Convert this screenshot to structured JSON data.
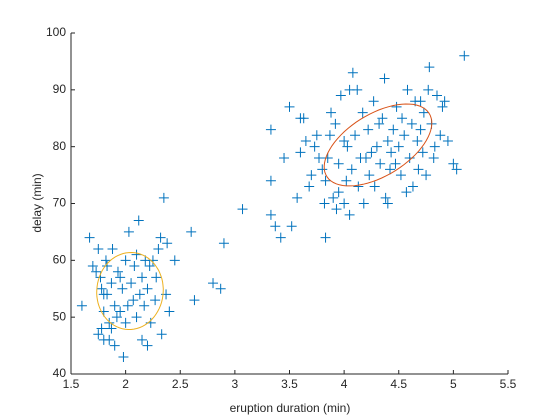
{
  "chart_data": {
    "type": "scatter",
    "xlabel": "eruption duration (min)",
    "ylabel": "delay (min)",
    "xlim": [
      1.5,
      5.5
    ],
    "xticks": [
      1.5,
      2,
      2.5,
      3,
      3.5,
      4,
      4.5,
      5,
      5.5
    ],
    "ylim": [
      40,
      100
    ],
    "yticks": [
      40,
      50,
      60,
      70,
      80,
      90,
      100
    ],
    "color": "#0072bd",
    "x": [
      1.6,
      1.67,
      1.7,
      1.73,
      1.75,
      1.75,
      1.77,
      1.78,
      1.78,
      1.8,
      1.8,
      1.8,
      1.82,
      1.83,
      1.83,
      1.85,
      1.85,
      1.87,
      1.87,
      1.88,
      1.9,
      1.9,
      1.92,
      1.93,
      1.95,
      1.95,
      1.97,
      1.98,
      2.0,
      2.0,
      2.02,
      2.03,
      2.05,
      2.07,
      2.08,
      2.1,
      2.1,
      2.12,
      2.13,
      2.15,
      2.15,
      2.17,
      2.18,
      2.2,
      2.2,
      2.22,
      2.23,
      2.25,
      2.27,
      2.28,
      2.3,
      2.32,
      2.33,
      2.35,
      2.37,
      2.38,
      2.4,
      2.45,
      2.6,
      2.63,
      2.8,
      2.87,
      2.9,
      3.07,
      3.33,
      3.33,
      3.33,
      3.37,
      3.42,
      3.45,
      3.5,
      3.52,
      3.57,
      3.6,
      3.6,
      3.63,
      3.65,
      3.68,
      3.7,
      3.73,
      3.75,
      3.77,
      3.8,
      3.82,
      3.83,
      3.83,
      3.85,
      3.87,
      3.88,
      3.9,
      3.92,
      3.93,
      3.95,
      3.97,
      4.0,
      4.0,
      4.02,
      4.03,
      4.05,
      4.07,
      4.08,
      4.1,
      4.12,
      4.13,
      4.15,
      4.17,
      4.18,
      4.2,
      4.22,
      4.23,
      4.25,
      4.27,
      4.28,
      4.3,
      4.32,
      4.33,
      4.35,
      4.37,
      4.38,
      4.4,
      4.42,
      4.43,
      4.45,
      4.47,
      4.48,
      4.5,
      4.52,
      4.53,
      4.55,
      4.58,
      4.6,
      4.62,
      4.63,
      4.65,
      4.67,
      4.68,
      4.7,
      4.7,
      4.72,
      4.73,
      4.75,
      4.77,
      4.78,
      4.8,
      4.82,
      4.83,
      4.85,
      4.88,
      4.9,
      4.92,
      4.95,
      5.0,
      5.03,
      5.1,
      4.4,
      4.57,
      4.05,
      3.95
    ],
    "values": [
      52,
      64,
      59,
      58,
      47,
      62,
      57,
      55,
      48,
      51,
      54,
      46,
      60,
      54,
      59,
      49,
      46,
      48,
      56,
      62,
      45,
      52,
      50,
      58,
      51,
      57,
      55,
      43,
      49,
      60,
      52,
      65,
      56,
      53,
      59,
      50,
      61,
      67,
      54,
      46,
      57,
      52,
      60,
      45,
      55,
      59,
      49,
      60,
      53,
      57,
      62,
      64,
      47,
      71,
      54,
      63,
      51,
      60,
      65,
      53,
      56,
      55,
      63,
      69,
      83,
      74,
      68,
      66,
      64,
      78,
      87,
      66,
      71,
      79,
      85,
      85,
      81,
      73,
      75,
      80,
      82,
      78,
      76,
      70,
      74,
      64,
      78,
      82,
      86,
      71,
      84,
      69,
      77,
      89,
      70,
      81,
      74,
      80,
      68,
      76,
      93,
      82,
      90,
      73,
      78,
      86,
      70,
      78,
      83,
      75,
      79,
      88,
      73,
      80,
      84,
      77,
      85,
      92,
      71,
      81,
      76,
      79,
      83,
      77,
      87,
      80,
      75,
      85,
      82,
      90,
      78,
      84,
      73,
      88,
      81,
      76,
      83,
      88,
      79,
      86,
      75,
      90,
      94,
      84,
      78,
      80,
      89,
      82,
      87,
      88,
      81,
      77,
      76,
      96,
      70,
      72,
      90,
      72
    ],
    "ellipses": [
      {
        "color": "#d95319",
        "center": [
          4.31,
          80.3
        ],
        "axis1": [
          0.45,
          6
        ],
        "axis2": [
          0.2,
          -4
        ]
      },
      {
        "color": "#edb120",
        "center": [
          2.04,
          54.6
        ],
        "axis1": [
          0.12,
          6.3
        ],
        "axis2": [
          0.28,
          -2.5
        ]
      }
    ]
  }
}
